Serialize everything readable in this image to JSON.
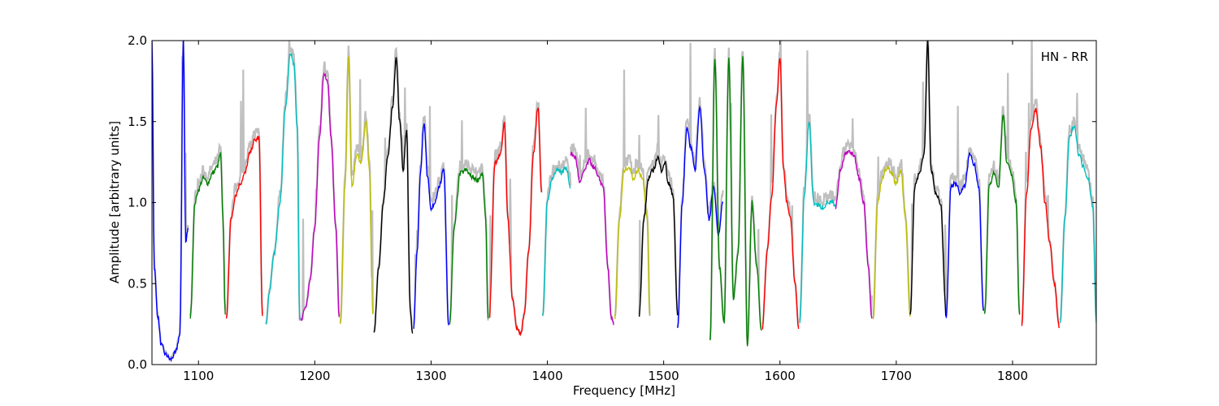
{
  "chart_data": {
    "type": "line",
    "title": "",
    "annotation": "HN - RR",
    "xlabel": "Frequency [MHz]",
    "ylabel": "Amplitude [arbitrary units]",
    "xlim": [
      1060,
      1872
    ],
    "ylim": [
      0,
      2.0
    ],
    "xticks": [
      1100,
      1200,
      1300,
      1400,
      1500,
      1600,
      1700,
      1800
    ],
    "xtick_labels": [
      "1100",
      "1200",
      "1300",
      "1400",
      "1500",
      "1600",
      "1700",
      "1800"
    ],
    "yticks": [
      0.0,
      0.5,
      1.0,
      1.5,
      2.0
    ],
    "ytick_labels": [
      "0.0",
      "0.5",
      "1.0",
      "1.5",
      "2.0"
    ],
    "grid": false,
    "raw_color": "#bfbfbf",
    "series": [
      {
        "color": "#0000ff",
        "x": [
          1060,
          1062,
          1065,
          1068,
          1072,
          1076,
          1080,
          1084,
          1087,
          1089,
          1091
        ],
        "y": [
          2.0,
          0.6,
          0.3,
          0.12,
          0.06,
          0.03,
          0.07,
          0.18,
          2.0,
          0.75,
          0.85
        ]
      },
      {
        "color": "#008000",
        "x": [
          1093,
          1097,
          1100,
          1104,
          1108,
          1112,
          1116,
          1119,
          1121,
          1123
        ],
        "y": [
          0.29,
          1.0,
          1.08,
          1.15,
          1.12,
          1.18,
          1.22,
          1.3,
          0.9,
          0.32
        ]
      },
      {
        "color": "#ff0000",
        "x": [
          1124,
          1128,
          1132,
          1136,
          1140,
          1144,
          1148,
          1152,
          1155
        ],
        "y": [
          0.28,
          0.9,
          1.05,
          1.12,
          1.18,
          1.3,
          1.38,
          1.4,
          0.3
        ]
      },
      {
        "color": "#00bfbf",
        "x": [
          1158,
          1161,
          1165,
          1170,
          1175,
          1179,
          1182,
          1185,
          1187
        ],
        "y": [
          0.24,
          0.45,
          0.68,
          1.0,
          1.6,
          1.92,
          1.85,
          1.45,
          0.27
        ]
      },
      {
        "color": "#bf00bf",
        "x": [
          1188,
          1192,
          1196,
          1200,
          1204,
          1208,
          1211,
          1214,
          1218,
          1221
        ],
        "y": [
          0.28,
          0.34,
          0.52,
          0.85,
          1.4,
          1.8,
          1.75,
          1.4,
          0.85,
          0.3
        ]
      },
      {
        "color": "#bfbf00",
        "x": [
          1222,
          1226,
          1229,
          1232,
          1236,
          1240,
          1244,
          1247,
          1250
        ],
        "y": [
          0.25,
          1.1,
          1.9,
          1.1,
          1.3,
          1.25,
          1.5,
          1.2,
          0.3
        ]
      },
      {
        "color": "#000000",
        "x": [
          1251,
          1255,
          1259,
          1263,
          1267,
          1270,
          1273,
          1276,
          1279,
          1282,
          1284
        ],
        "y": [
          0.19,
          0.6,
          1.0,
          1.3,
          1.6,
          1.9,
          1.5,
          1.2,
          1.45,
          0.35,
          0.2
        ]
      },
      {
        "color": "#0000ff",
        "x": [
          1285,
          1288,
          1291,
          1294,
          1297,
          1300,
          1303,
          1307,
          1311,
          1315
        ],
        "y": [
          0.23,
          0.7,
          1.2,
          1.5,
          1.15,
          0.95,
          1.0,
          1.1,
          1.2,
          0.25
        ]
      },
      {
        "color": "#008000",
        "x": [
          1316,
          1320,
          1325,
          1330,
          1335,
          1340,
          1344,
          1347,
          1349
        ],
        "y": [
          0.26,
          0.85,
          1.18,
          1.2,
          1.16,
          1.14,
          1.18,
          0.9,
          0.27
        ]
      },
      {
        "color": "#ff0000",
        "x": [
          1350,
          1355,
          1360,
          1363,
          1366,
          1370,
          1374,
          1377,
          1380,
          1384,
          1388,
          1392,
          1395
        ],
        "y": [
          0.28,
          1.25,
          1.3,
          1.5,
          0.9,
          0.4,
          0.22,
          0.18,
          0.3,
          0.7,
          1.3,
          1.6,
          1.05
        ]
      },
      {
        "color": "#00bfbf",
        "x": [
          1396,
          1400,
          1404,
          1408,
          1412,
          1416,
          1420
        ],
        "y": [
          0.29,
          1.0,
          1.15,
          1.2,
          1.18,
          1.22,
          1.1
        ]
      },
      {
        "color": "#bf00bf",
        "x": [
          1420,
          1424,
          1428,
          1432,
          1436,
          1440,
          1444,
          1448,
          1452,
          1455,
          1457
        ],
        "y": [
          1.3,
          1.28,
          1.12,
          1.2,
          1.26,
          1.22,
          1.15,
          1.1,
          0.6,
          0.28,
          0.25
        ]
      },
      {
        "color": "#bfbf00",
        "x": [
          1458,
          1462,
          1466,
          1470,
          1474,
          1478,
          1482,
          1486,
          1488
        ],
        "y": [
          0.28,
          0.9,
          1.2,
          1.22,
          1.15,
          1.2,
          1.15,
          0.9,
          0.3
        ]
      },
      {
        "color": "#000000",
        "x": [
          1479,
          1483,
          1487,
          1491,
          1495,
          1498,
          1501,
          1504,
          1508,
          1512
        ],
        "y": [
          0.3,
          0.9,
          1.15,
          1.2,
          1.28,
          1.2,
          1.25,
          1.12,
          1.05,
          0.3
        ]
      },
      {
        "color": "#0000ff",
        "x": [
          1512,
          1516,
          1520,
          1523,
          1527,
          1531,
          1535,
          1539,
          1543,
          1547,
          1551
        ],
        "y": [
          0.22,
          1.0,
          1.47,
          1.35,
          1.2,
          1.6,
          1.2,
          0.9,
          1.1,
          0.8,
          1.0
        ]
      },
      {
        "color": "#008000",
        "x": [
          1540,
          1544,
          1548,
          1552,
          1556,
          1560,
          1564,
          1568,
          1572,
          1576,
          1580,
          1584
        ],
        "y": [
          0.15,
          1.9,
          0.6,
          0.25,
          1.9,
          0.4,
          0.7,
          1.9,
          0.12,
          1.0,
          0.6,
          0.22
        ]
      },
      {
        "color": "#ff0000",
        "x": [
          1585,
          1589,
          1593,
          1597,
          1600,
          1603,
          1606,
          1609,
          1613,
          1616
        ],
        "y": [
          0.23,
          0.7,
          1.05,
          1.6,
          1.9,
          1.2,
          1.0,
          0.9,
          0.5,
          0.22
        ]
      },
      {
        "color": "#00bfbf",
        "x": [
          1617,
          1621,
          1625,
          1629,
          1633,
          1637,
          1641,
          1645,
          1648
        ],
        "y": [
          0.26,
          1.05,
          1.5,
          1.0,
          0.98,
          0.97,
          1.0,
          1.0,
          0.97
        ]
      },
      {
        "color": "#bf00bf",
        "x": [
          1648,
          1652,
          1656,
          1660,
          1664,
          1668,
          1672,
          1676,
          1679
        ],
        "y": [
          0.97,
          1.2,
          1.3,
          1.32,
          1.28,
          1.15,
          1.0,
          0.6,
          0.28
        ]
      },
      {
        "color": "#bfbf00",
        "x": [
          1680,
          1684,
          1688,
          1692,
          1696,
          1700,
          1704,
          1708,
          1712
        ],
        "y": [
          0.27,
          1.0,
          1.15,
          1.22,
          1.18,
          1.12,
          1.2,
          0.9,
          0.3
        ]
      },
      {
        "color": "#000000",
        "x": [
          1712,
          1716,
          1720,
          1724,
          1727,
          1730,
          1734,
          1738,
          1743
        ],
        "y": [
          0.3,
          1.1,
          1.18,
          1.3,
          2.0,
          1.2,
          1.05,
          1.0,
          0.3
        ]
      },
      {
        "color": "#0000ff",
        "x": [
          1743,
          1747,
          1751,
          1755,
          1759,
          1763,
          1767,
          1771,
          1775
        ],
        "y": [
          0.3,
          1.1,
          1.12,
          1.06,
          1.1,
          1.3,
          1.24,
          1.1,
          0.32
        ]
      },
      {
        "color": "#008000",
        "x": [
          1776,
          1780,
          1784,
          1788,
          1792,
          1795,
          1799,
          1803,
          1806
        ],
        "y": [
          0.3,
          1.1,
          1.18,
          1.1,
          1.55,
          1.25,
          1.18,
          1.0,
          0.3
        ]
      },
      {
        "color": "#ff0000",
        "x": [
          1808,
          1812,
          1816,
          1820,
          1824,
          1828,
          1832,
          1836,
          1840
        ],
        "y": [
          0.25,
          1.05,
          1.45,
          1.58,
          1.35,
          1.0,
          0.75,
          0.5,
          0.24
        ]
      },
      {
        "color": "#00bfbf",
        "x": [
          1841,
          1845,
          1849,
          1853,
          1857,
          1861,
          1865,
          1869,
          1872
        ],
        "y": [
          0.26,
          0.9,
          1.4,
          1.48,
          1.3,
          1.22,
          1.15,
          0.98,
          0.27
        ]
      }
    ]
  }
}
